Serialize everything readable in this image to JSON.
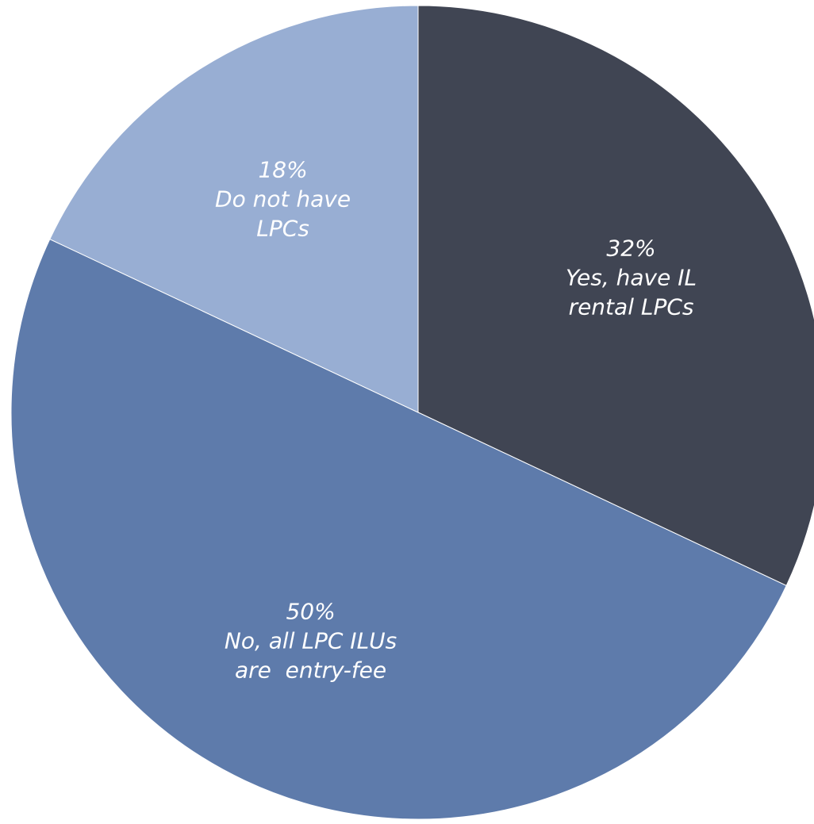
{
  "chart_data": {
    "type": "pie",
    "categories": [
      "Yes, have IL\nrental LPCs",
      "No, all LPC ILUs\nare  entry-fee",
      "Do not have\nLPCs"
    ],
    "values": [
      32,
      50,
      18
    ],
    "value_labels": [
      "32%",
      "50%",
      "18%"
    ],
    "colors": [
      "#404553",
      "#5e7bab",
      "#98aed3"
    ]
  }
}
